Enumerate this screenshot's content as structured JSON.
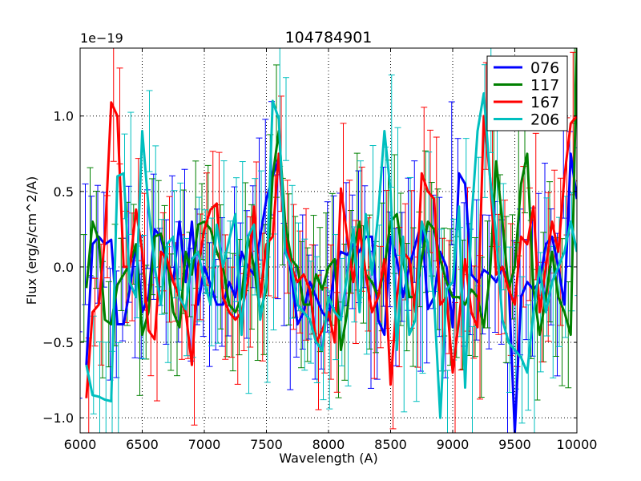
{
  "chart_data": {
    "type": "line",
    "title": "104784901",
    "xlabel": "Wavelength (A)",
    "ylabel": "Flux (erg/s/cm^2/A)",
    "scale_label": "1e−19",
    "xlim": [
      6000,
      10000
    ],
    "ylim": [
      -1.1,
      1.45
    ],
    "x_ticks": [
      6000,
      6500,
      7000,
      7500,
      8000,
      8500,
      9000,
      9500,
      10000
    ],
    "y_ticks": [
      -1.0,
      -0.5,
      0.0,
      0.5,
      1.0
    ],
    "x_tick_labels": [
      "6000",
      "6500",
      "7000",
      "7500",
      "8000",
      "8500",
      "9000",
      "9500",
      "10000"
    ],
    "y_tick_labels": [
      "−1.0",
      "−0.5",
      "0.0",
      "0.5",
      "1.0"
    ],
    "grid": true,
    "legend_position": "top-right",
    "x": [
      6050,
      6100,
      6150,
      6200,
      6250,
      6300,
      6350,
      6400,
      6450,
      6500,
      6550,
      6600,
      6650,
      6700,
      6750,
      6800,
      6850,
      6900,
      6950,
      7000,
      7050,
      7100,
      7150,
      7200,
      7250,
      7300,
      7350,
      7400,
      7450,
      7500,
      7550,
      7600,
      7650,
      7700,
      7750,
      7800,
      7850,
      7900,
      7950,
      8000,
      8050,
      8100,
      8150,
      8200,
      8250,
      8300,
      8350,
      8400,
      8450,
      8500,
      8550,
      8600,
      8650,
      8700,
      8750,
      8800,
      8850,
      8900,
      8950,
      9000,
      9050,
      9100,
      9150,
      9200,
      9250,
      9300,
      9350,
      9400,
      9450,
      9500,
      9550,
      9600,
      9650,
      9700,
      9750,
      9800,
      9850,
      9900,
      9950,
      10000
    ],
    "series": [
      {
        "name": "076",
        "color": "#0000ff",
        "values": [
          -0.65,
          0.15,
          0.2,
          0.15,
          0.18,
          -0.38,
          -0.38,
          -0.15,
          0.15,
          -0.3,
          -0.2,
          0.25,
          0.2,
          0.0,
          -0.1,
          0.3,
          -0.1,
          0.3,
          -0.25,
          0.0,
          -0.12,
          -0.25,
          -0.25,
          -0.1,
          -0.2,
          0.1,
          0.0,
          -0.05,
          0.2,
          0.45,
          0.6,
          0.72,
          0.2,
          -0.05,
          -0.38,
          -0.3,
          -0.1,
          -0.2,
          -0.3,
          -0.35,
          0.0,
          0.1,
          0.08,
          0.15,
          0.1,
          0.2,
          0.2,
          -0.35,
          -0.45,
          0.2,
          0.05,
          -0.2,
          0.0,
          0.15,
          0.3,
          -0.28,
          -0.2,
          0.1,
          0.0,
          -0.4,
          0.62,
          0.55,
          -0.05,
          -0.1,
          -0.02,
          -0.05,
          -0.1,
          0.0,
          -0.1,
          -1.1,
          -0.2,
          -0.1,
          -0.15,
          -0.1,
          0.15,
          0.2,
          0.0,
          -0.25,
          0.75,
          0.45
        ]
      },
      {
        "name": "117",
        "color": "#008000",
        "values": [
          -0.14,
          0.3,
          0.18,
          -0.35,
          -0.38,
          -0.12,
          -0.05,
          0.02,
          0.15,
          -0.45,
          -0.3,
          0.2,
          0.22,
          0.05,
          -0.3,
          -0.4,
          0.1,
          -0.05,
          0.28,
          0.3,
          0.25,
          0.1,
          0.0,
          -0.25,
          -0.3,
          -0.2,
          0.2,
          0.0,
          -0.3,
          -0.15,
          0.6,
          0.9,
          0.3,
          0.05,
          0.0,
          -0.25,
          -0.25,
          -0.05,
          -0.15,
          0.0,
          0.05,
          -0.55,
          -0.3,
          0.1,
          0.3,
          -0.05,
          -0.1,
          -0.2,
          0.0,
          0.3,
          0.35,
          0.05,
          -0.2,
          -0.2,
          0.05,
          0.3,
          0.25,
          0.05,
          -0.1,
          -0.2,
          -0.2,
          -0.25,
          -0.15,
          -0.2,
          -0.4,
          -0.05,
          0.7,
          0.3,
          -0.15,
          0.0,
          0.55,
          0.75,
          -0.15,
          -0.45,
          -0.2,
          0.1,
          -0.2,
          -0.3,
          -0.45,
          1.45
        ]
      },
      {
        "name": "167",
        "color": "#ff0000",
        "values": [
          -0.87,
          -0.3,
          -0.25,
          0.2,
          1.09,
          1.0,
          0.0,
          0.0,
          0.38,
          0.1,
          -0.42,
          -0.48,
          0.1,
          0.05,
          -0.1,
          -0.2,
          -0.3,
          -0.65,
          0.0,
          0.25,
          0.38,
          0.42,
          -0.2,
          -0.3,
          -0.35,
          -0.3,
          -0.1,
          0.4,
          -0.2,
          0.15,
          0.2,
          0.75,
          0.2,
          0.0,
          -0.1,
          -0.05,
          -0.15,
          -0.5,
          -0.42,
          -0.3,
          -0.5,
          0.52,
          0.2,
          -0.1,
          0.25,
          -0.05,
          -0.3,
          -0.2,
          0.05,
          -0.78,
          -0.2,
          0.1,
          0.05,
          -0.3,
          0.62,
          0.5,
          0.45,
          -0.25,
          -0.2,
          -0.7,
          -0.35,
          0.05,
          -0.3,
          -0.4,
          1.0,
          0.6,
          -0.05,
          0.0,
          -0.15,
          -0.25,
          0.2,
          0.15,
          0.4,
          -0.3,
          0.0,
          0.3,
          0.1,
          0.6,
          0.95,
          1.0
        ]
      },
      {
        "name": "206",
        "color": "#00bfbf",
        "values": [
          -0.65,
          -0.85,
          -0.86,
          -0.88,
          -0.89,
          0.6,
          0.62,
          -0.1,
          -0.2,
          0.9,
          0.4,
          0.0,
          -0.25,
          0.15,
          0.2,
          -0.2,
          -0.28,
          0.05,
          0.1,
          -0.1,
          -0.25,
          0.28,
          0.0,
          0.18,
          0.35,
          -0.45,
          0.2,
          0.28,
          -0.35,
          -0.1,
          1.1,
          0.98,
          0.1,
          0.0,
          -0.25,
          -0.3,
          -0.35,
          -0.5,
          -0.55,
          -0.2,
          -0.3,
          -0.35,
          -0.05,
          0.25,
          -0.3,
          0.35,
          -0.05,
          0.35,
          0.9,
          0.5,
          -0.55,
          0.2,
          -0.45,
          -0.35,
          0.3,
          0.15,
          -0.22,
          -1.0,
          -0.15,
          -0.1,
          0.4,
          -0.8,
          0.3,
          0.9,
          1.15,
          0.6,
          0.2,
          -0.35,
          -0.5,
          -0.55,
          -0.6,
          -0.7,
          -0.3,
          0.0,
          -0.3,
          -0.1,
          0.0,
          0.1,
          0.3,
          0.1
        ]
      }
    ]
  }
}
